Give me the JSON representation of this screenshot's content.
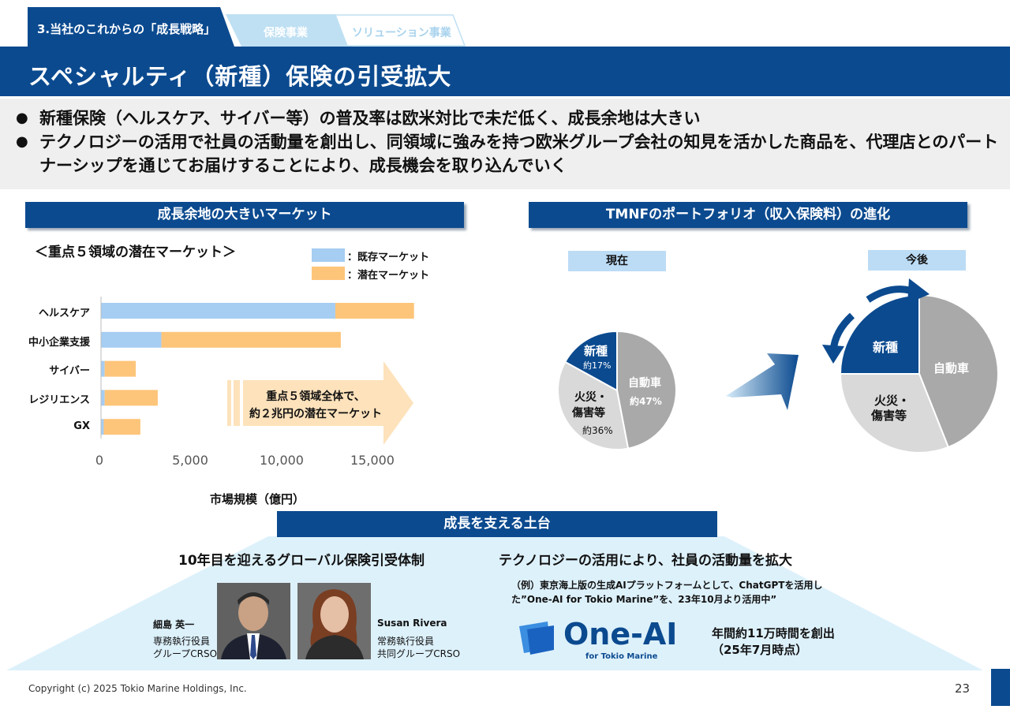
{
  "header": {
    "section_tab": "3.当社のこれからの「成長戦略」",
    "tab_insurance": "保険事業",
    "tab_solution": "ソリューション事業",
    "title": "スペシャルティ（新種）保険の引受拡大"
  },
  "bullets": [
    "新種保険（ヘルスケア、サイバー等）の普及率は欧米対比で未だ低く、成長余地は大きい",
    "テクノロジーの活用で社員の活動量を創出し、同領域に強みを持つ欧米グループ会社の知見を活かした商品を、代理店とのパートナーシップを通じてお届けすることにより、成長機会を取り込んでいく"
  ],
  "market": {
    "heading": "成長余地の大きいマーケット",
    "subtitle": "＜重点５領域の潜在マーケット＞",
    "legend_existing": "：既存マーケット",
    "legend_potential": "：潜在マーケット",
    "xlabel": "市場規模（億円）",
    "callout": [
      "重点５領域全体で、",
      "約２兆円の潜在マーケット"
    ]
  },
  "chart_data": [
    {
      "type": "bar",
      "orientation": "horizontal",
      "stacked": true,
      "categories": [
        "ヘルスケア",
        "中小企業支援",
        "サイバー",
        "レジリエンス",
        "GX"
      ],
      "series": [
        {
          "name": "既存マーケット",
          "color": "#a6cdf2",
          "values": [
            12800,
            3300,
            200,
            200,
            150
          ]
        },
        {
          "name": "潜在マーケット",
          "color": "#fdc57a",
          "values": [
            4300,
            9800,
            1700,
            2900,
            2000
          ]
        }
      ],
      "xlim": [
        0,
        17000
      ],
      "xticks": [
        0,
        5000,
        10000,
        15000
      ],
      "xtick_labels": [
        "0",
        "5,000",
        "10,000",
        "15,000"
      ],
      "xlabel": "市場規模（億円）",
      "grid": false
    },
    {
      "type": "pie",
      "title": "現在",
      "slices": [
        {
          "label": "自動車",
          "value_label": "約47%",
          "value": 47,
          "color": "#a9a9a9"
        },
        {
          "label": "火災・\n傷害等",
          "value_label": "約36%",
          "value": 36,
          "color": "#d9d9d9"
        },
        {
          "label": "新種",
          "value_label": "約17%",
          "value": 17,
          "color": "#0b4a8f"
        }
      ]
    },
    {
      "type": "pie",
      "title": "今後",
      "slices": [
        {
          "label": "自動車",
          "value": 44,
          "color": "#a9a9a9"
        },
        {
          "label": "火災・\n傷害等",
          "value": 31,
          "color": "#d9d9d9"
        },
        {
          "label": "新種",
          "value": 25,
          "color": "#0b4a8f"
        }
      ]
    }
  ],
  "portfolio": {
    "heading": "TMNFのポートフォリオ（収入保険料）の進化",
    "now_label": "現在",
    "future_label": "今後",
    "now": {
      "car": "自動車",
      "car_pct": "約47%",
      "fire": "火災・",
      "fire2": "傷害等",
      "fire_pct": "約36%",
      "new": "新種",
      "new_pct": "約17%"
    },
    "future": {
      "car": "自動車",
      "fire": "火災・",
      "fire2": "傷害等",
      "new": "新種"
    }
  },
  "foundation": {
    "heading": "成長を支える土台",
    "left_title": "10年目を迎えるグローバル保険引受体制",
    "right_title": "テクノロジーの活用により、社員の活動量を拡大",
    "person1": {
      "name": "細島 英一",
      "role1": "専務執行役員",
      "role2": "グループCRSO"
    },
    "person2": {
      "name": "Susan Rivera",
      "role1": "常務執行役員",
      "role2": "共同グループCRSO"
    },
    "example": [
      "（例）東京海上版の生成AIプラットフォームとして、ChatGPTを活用し",
      "た”One-AI for Tokio Marine”を、23年10月より活用中”"
    ],
    "logo_text": "One-AI",
    "logo_sub": "for Tokio Marine",
    "result": [
      "年間約11万時間を創出",
      "（25年7月時点）"
    ]
  },
  "footer": {
    "copyright": "Copyright (c) 2025 Tokio Marine Holdings, Inc.",
    "page": "23"
  }
}
